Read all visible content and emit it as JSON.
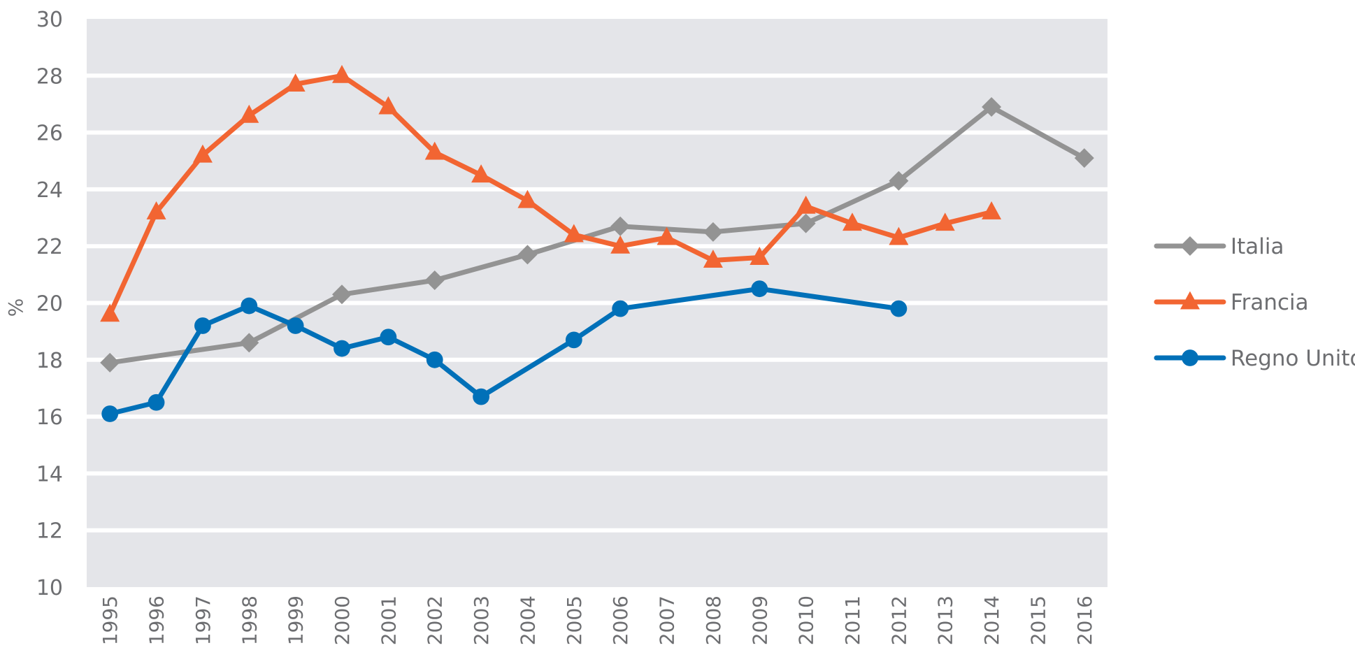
{
  "chart_data": {
    "type": "line",
    "title": "",
    "xlabel": "",
    "ylabel": "%",
    "ylim": [
      10,
      30
    ],
    "yticks": [
      10,
      12,
      14,
      16,
      18,
      20,
      22,
      24,
      26,
      28,
      30
    ],
    "categories": [
      "1995",
      "1996",
      "1997",
      "1998",
      "1999",
      "2000",
      "2001",
      "2002",
      "2003",
      "2004",
      "2005",
      "2006",
      "2007",
      "2008",
      "2009",
      "2010",
      "2011",
      "2012",
      "2013",
      "2014",
      "2015",
      "2016"
    ],
    "grid": true,
    "legend_position": "right",
    "background_color": "#e4e5e9",
    "series": [
      {
        "name": "Italia",
        "color": "#939393",
        "marker": "diamond",
        "points": [
          [
            1995,
            17.9
          ],
          [
            1998,
            18.6
          ],
          [
            2000,
            20.3
          ],
          [
            2002,
            20.8
          ],
          [
            2004,
            21.7
          ],
          [
            2006,
            22.7
          ],
          [
            2008,
            22.5
          ],
          [
            2010,
            22.8
          ],
          [
            2012,
            24.3
          ],
          [
            2014,
            26.9
          ],
          [
            2016,
            25.1
          ]
        ]
      },
      {
        "name": "Francia",
        "color": "#f26532",
        "marker": "triangle",
        "points": [
          [
            1995,
            19.6
          ],
          [
            1996,
            23.2
          ],
          [
            1997,
            25.2
          ],
          [
            1998,
            26.6
          ],
          [
            1999,
            27.7
          ],
          [
            2000,
            28.0
          ],
          [
            2001,
            26.9
          ],
          [
            2002,
            25.3
          ],
          [
            2003,
            24.5
          ],
          [
            2004,
            23.6
          ],
          [
            2005,
            22.4
          ],
          [
            2006,
            22.0
          ],
          [
            2007,
            22.3
          ],
          [
            2008,
            21.5
          ],
          [
            2009,
            21.6
          ],
          [
            2010,
            23.4
          ],
          [
            2011,
            22.8
          ],
          [
            2012,
            22.3
          ],
          [
            2013,
            22.8
          ],
          [
            2014,
            23.2
          ]
        ]
      },
      {
        "name": "Regno Unito",
        "color": "#0070b8",
        "marker": "circle",
        "points": [
          [
            1995,
            16.1
          ],
          [
            1996,
            16.5
          ],
          [
            1997,
            19.2
          ],
          [
            1998,
            19.9
          ],
          [
            1999,
            19.2
          ],
          [
            2000,
            18.4
          ],
          [
            2001,
            18.8
          ],
          [
            2002,
            18.0
          ],
          [
            2003,
            16.7
          ],
          [
            2005,
            18.7
          ],
          [
            2006,
            19.8
          ],
          [
            2009,
            20.5
          ],
          [
            2012,
            19.8
          ]
        ]
      }
    ]
  }
}
